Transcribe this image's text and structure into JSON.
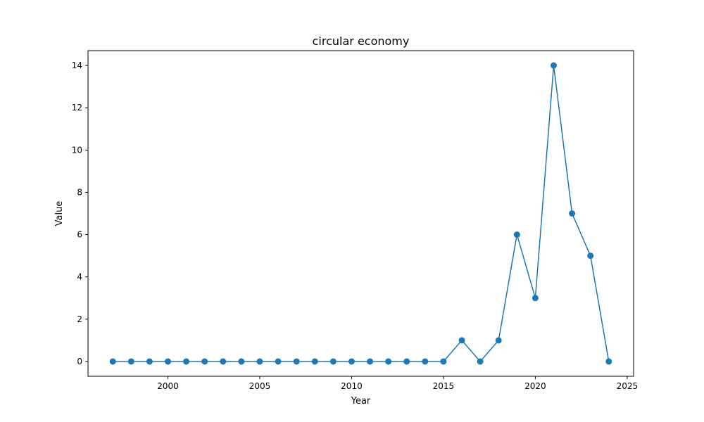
{
  "chart_data": {
    "type": "line",
    "title": "circular economy",
    "xlabel": "Year",
    "ylabel": "Value",
    "xlim": [
      1995.65,
      2025.35
    ],
    "ylim": [
      -0.7,
      14.7
    ],
    "xticks": [
      2000,
      2005,
      2010,
      2015,
      2020,
      2025
    ],
    "yticks": [
      0,
      2,
      4,
      6,
      8,
      10,
      12,
      14
    ],
    "grid": false,
    "legend": false,
    "series": [
      {
        "color": "#1f77b4",
        "marker": "circle",
        "x": [
          1997,
          1998,
          1999,
          2000,
          2001,
          2002,
          2003,
          2004,
          2005,
          2006,
          2007,
          2008,
          2009,
          2010,
          2011,
          2012,
          2013,
          2014,
          2015,
          2016,
          2017,
          2018,
          2019,
          2020,
          2021,
          2022,
          2023,
          2024
        ],
        "values": [
          0,
          0,
          0,
          0,
          0,
          0,
          0,
          0,
          0,
          0,
          0,
          0,
          0,
          0,
          0,
          0,
          0,
          0,
          0,
          1,
          0,
          1,
          6,
          3,
          14,
          7,
          5,
          0
        ]
      }
    ]
  }
}
